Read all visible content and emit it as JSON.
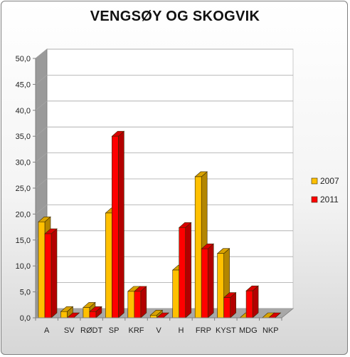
{
  "chart_data": {
    "type": "bar",
    "title": "VENGSØY OG SKOGVIK",
    "categories": [
      "A",
      "SV",
      "RØDT",
      "SP",
      "KRF",
      "V",
      "H",
      "FRP",
      "KYST",
      "MDG",
      "NKP"
    ],
    "series": [
      {
        "name": "2007",
        "color": "#FFC000",
        "values": [
          18.5,
          1.2,
          2.0,
          20.2,
          5.1,
          0.5,
          9.2,
          27.2,
          12.4,
          0.0,
          0.0
        ]
      },
      {
        "name": "2011",
        "color": "#FF0000",
        "values": [
          16.2,
          0.0,
          1.2,
          35.0,
          5.1,
          0.0,
          17.4,
          13.3,
          3.9,
          5.2,
          0.0
        ]
      }
    ],
    "ylim": [
      0,
      50
    ],
    "yticks": [
      "0,0",
      "5,0",
      "10,0",
      "15,0",
      "20,0",
      "25,0",
      "30,0",
      "35,0",
      "40,0",
      "45,0",
      "50,0"
    ],
    "grid": true,
    "legend_position": "right"
  }
}
